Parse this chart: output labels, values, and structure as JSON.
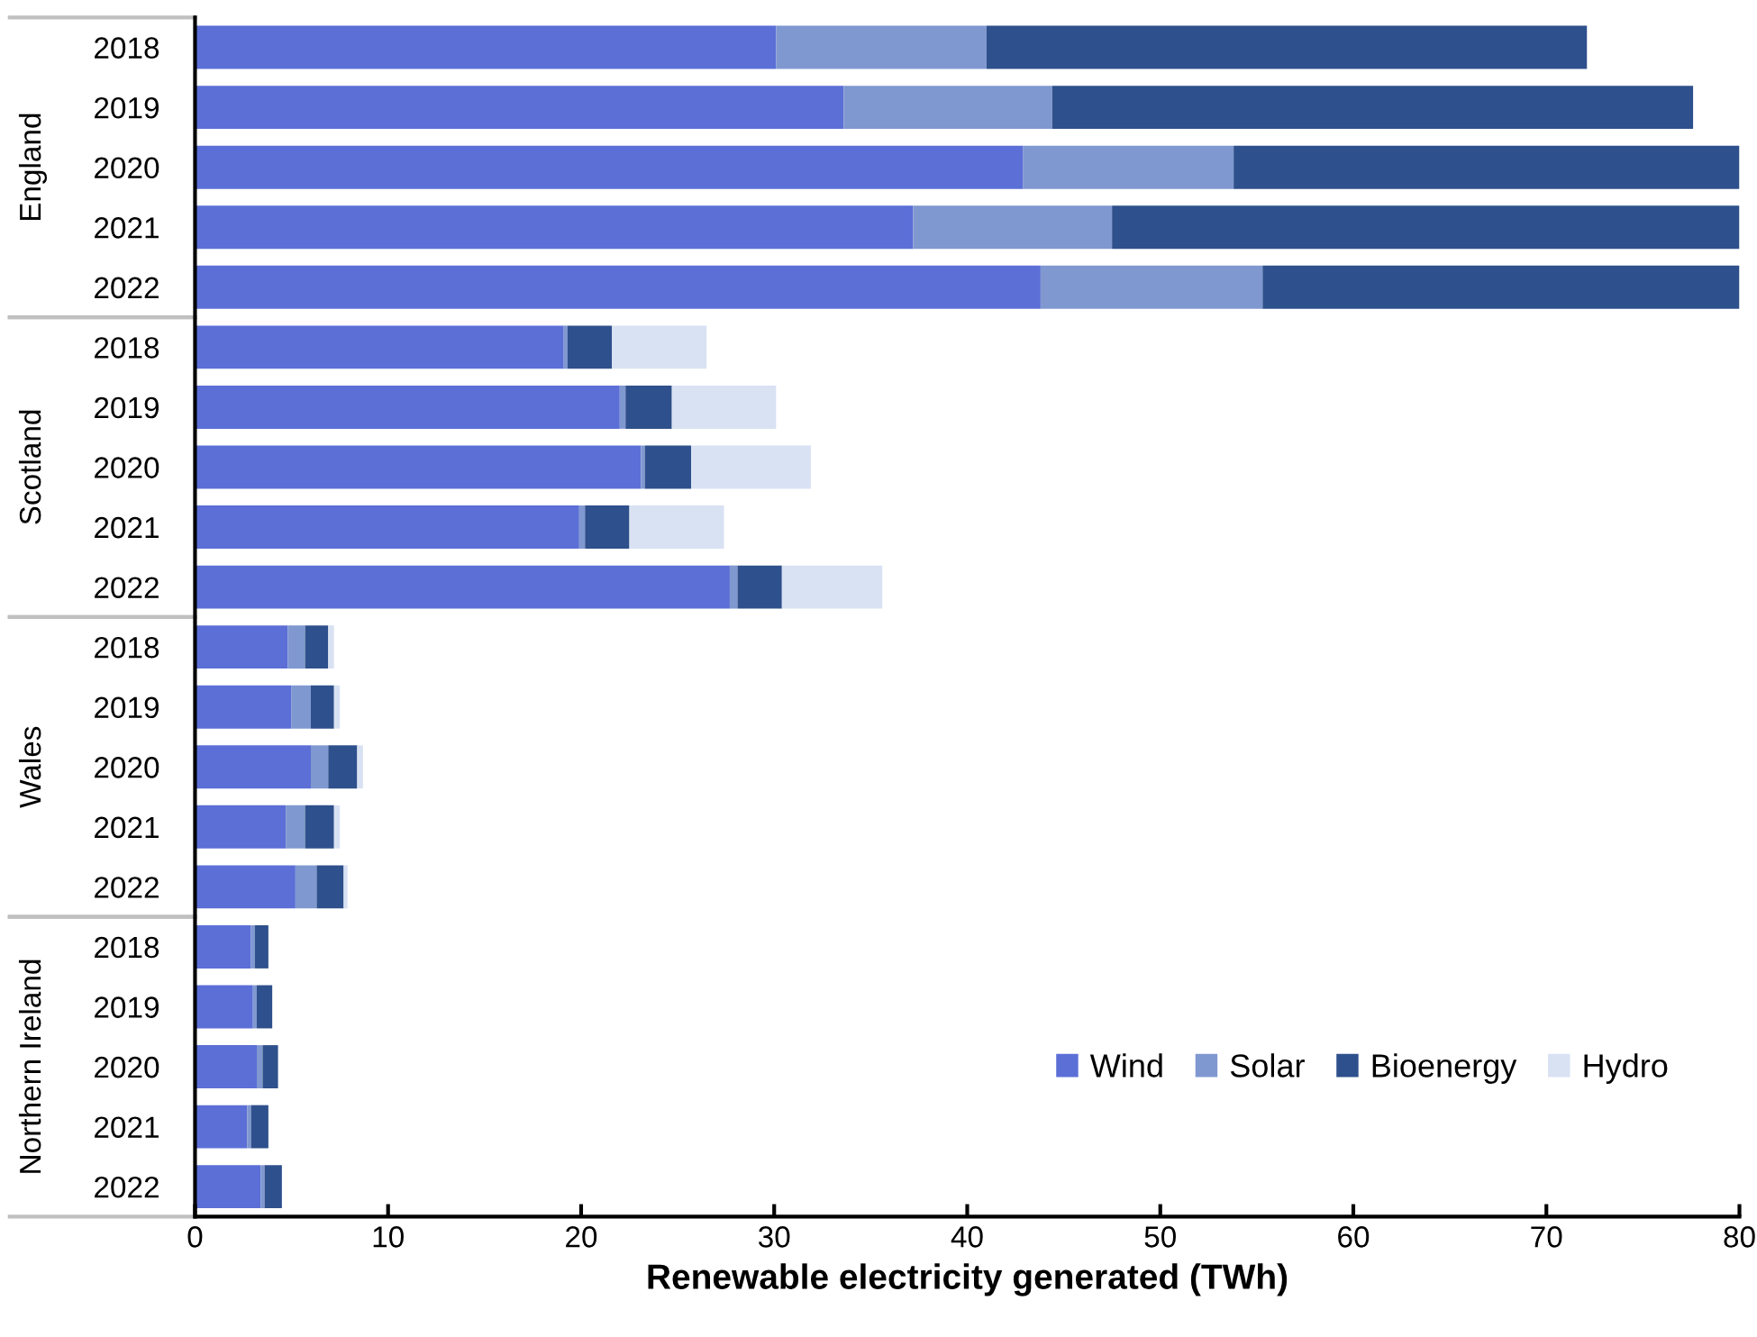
{
  "chart_data": {
    "type": "bar",
    "orientation": "horizontal",
    "stacked": true,
    "xlabel": "Renewable electricity generated (TWh)",
    "annotations": [
      "England",
      "Scotland",
      "Wales",
      "Northern Ireland"
    ],
    "categories": [
      "2018",
      "2019",
      "2020",
      "2021",
      "2022",
      "2018",
      "2019",
      "2020",
      "2021",
      "2022",
      "2018",
      "2019",
      "2020",
      "2021",
      "2022",
      "2018",
      "2019",
      "2020",
      "2021",
      "2022"
    ],
    "series": [
      {
        "name": "Wind",
        "color": "#5b6fd6",
        "values": [
          30.1,
          33.6,
          42.9,
          37.2,
          43.8,
          19.1,
          22.0,
          23.1,
          19.9,
          27.7,
          4.8,
          5.0,
          6.0,
          4.7,
          5.2,
          2.9,
          3.0,
          3.2,
          2.7,
          3.4
        ]
      },
      {
        "name": "Solar",
        "color": "#8098d0",
        "values": [
          10.9,
          10.8,
          10.9,
          10.3,
          11.5,
          0.2,
          0.3,
          0.2,
          0.3,
          0.4,
          0.9,
          1.0,
          0.9,
          1.0,
          1.1,
          0.2,
          0.2,
          0.3,
          0.2,
          0.2
        ]
      },
      {
        "name": "Bioenergy",
        "color": "#2e508c",
        "values": [
          31.1,
          33.2,
          26.2,
          32.5,
          24.7,
          2.3,
          2.4,
          2.4,
          2.3,
          2.3,
          1.2,
          1.2,
          1.5,
          1.5,
          1.4,
          0.7,
          0.8,
          0.8,
          0.9,
          0.9
        ]
      },
      {
        "name": "Hydro",
        "color": "#d9e2f3",
        "values": [
          null,
          null,
          null,
          null,
          null,
          4.9,
          5.4,
          6.2,
          4.9,
          5.2,
          0.3,
          0.3,
          0.3,
          0.3,
          0.2,
          null,
          null,
          null,
          null,
          null
        ]
      }
    ],
    "xlim": [
      0,
      80
    ],
    "xticks": [
      0,
      10,
      20,
      30,
      40,
      50,
      60,
      70,
      80
    ],
    "grid": false,
    "legend": "bottom right"
  }
}
